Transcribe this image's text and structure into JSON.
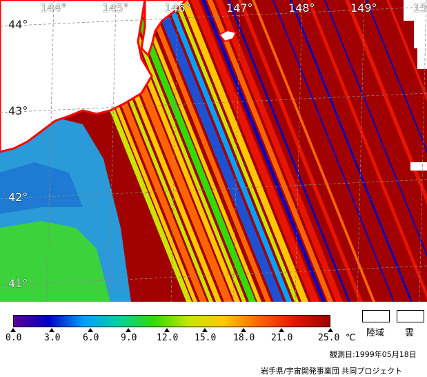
{
  "map": {
    "lon_labels": [
      "144°",
      "145°",
      "146°",
      "147°",
      "148°",
      "149°",
      "15"
    ],
    "lat_labels": [
      "44°",
      "43°",
      "42°",
      "41°"
    ]
  },
  "colorbar": {
    "tick_labels": [
      "0.0",
      "3.0",
      "6.0",
      "9.0",
      "12.0",
      "15.0",
      "18.0",
      "21.0",
      "25.0"
    ],
    "unit": "℃"
  },
  "legend": {
    "land": "陸域",
    "cloud": "雲"
  },
  "footer": {
    "date": "観測日:1999年05月18日",
    "credit": "岩手県/宇宙開発事業団 共同プロジェクト"
  },
  "colors": {
    "land": "#ffffff",
    "coast": "#ff0000",
    "scale": [
      "#5a0096",
      "#0000c8",
      "#00a0ff",
      "#00d2a0",
      "#32dc00",
      "#c8e600",
      "#ffc800",
      "#ff6400",
      "#e61400",
      "#a00000"
    ]
  }
}
